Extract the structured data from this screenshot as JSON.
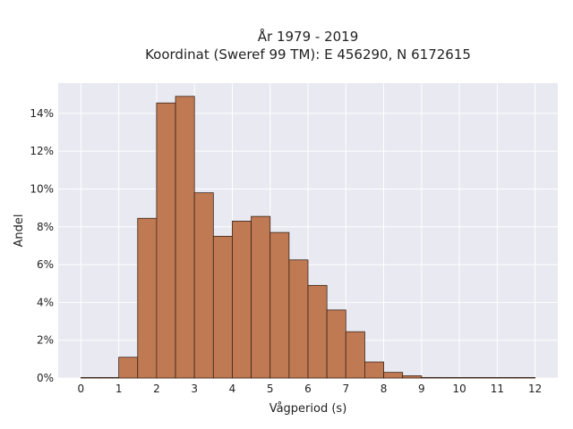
{
  "chart_data": {
    "type": "bar",
    "title": "År 1979 - 2019",
    "subtitle": "Koordinat (Sweref 99 TM): E 456290, N 6172615",
    "xlabel": "Vågperiod (s)",
    "ylabel": "Andel",
    "xlim": [
      -0.6,
      12.6
    ],
    "ylim": [
      0,
      15.6
    ],
    "x_ticks": [
      0,
      1,
      2,
      3,
      4,
      5,
      6,
      7,
      8,
      9,
      10,
      11,
      12
    ],
    "y_ticks": [
      0,
      2,
      4,
      6,
      8,
      10,
      12,
      14
    ],
    "y_tick_labels": [
      "0%",
      "2%",
      "4%",
      "6%",
      "8%",
      "10%",
      "12%",
      "14%"
    ],
    "bin_width": 0.5,
    "bins": [
      {
        "x": 0.0,
        "value": 0.0
      },
      {
        "x": 0.5,
        "value": 0.0
      },
      {
        "x": 1.0,
        "value": 1.1
      },
      {
        "x": 1.5,
        "value": 8.45
      },
      {
        "x": 2.0,
        "value": 14.55
      },
      {
        "x": 2.5,
        "value": 14.9
      },
      {
        "x": 3.0,
        "value": 9.8
      },
      {
        "x": 3.5,
        "value": 7.5
      },
      {
        "x": 4.0,
        "value": 8.3
      },
      {
        "x": 4.5,
        "value": 8.55
      },
      {
        "x": 5.0,
        "value": 7.7
      },
      {
        "x": 5.5,
        "value": 6.25
      },
      {
        "x": 6.0,
        "value": 4.9
      },
      {
        "x": 6.5,
        "value": 3.6
      },
      {
        "x": 7.0,
        "value": 2.45
      },
      {
        "x": 7.5,
        "value": 0.85
      },
      {
        "x": 8.0,
        "value": 0.3
      },
      {
        "x": 8.5,
        "value": 0.12
      },
      {
        "x": 9.0,
        "value": 0.03
      },
      {
        "x": 9.5,
        "value": 0.02
      },
      {
        "x": 10.0,
        "value": 0.02
      },
      {
        "x": 10.5,
        "value": 0.01
      },
      {
        "x": 11.0,
        "value": 0.01
      },
      {
        "x": 11.5,
        "value": 0.01
      }
    ],
    "grid": true,
    "colors": {
      "bar": "#c07a53",
      "bar_edge": "#3a2418",
      "plot_background": "#e8e9f1",
      "grid": "#ffffff"
    }
  }
}
